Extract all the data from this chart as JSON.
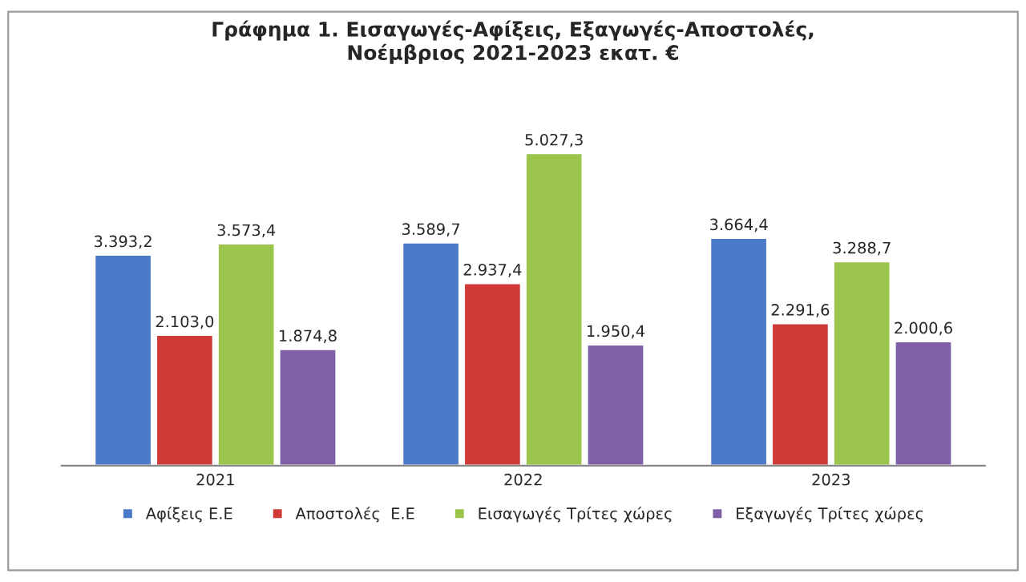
{
  "chart_data": {
    "type": "bar",
    "title": "Γράφημα 1. Εισαγωγές-Αφίξεις, Εξαγωγές-Αποστολές,\nΝοέμβριος 2021-2023 εκατ. €",
    "categories": [
      "2021",
      "2022",
      "2023"
    ],
    "series": [
      {
        "name": "Αφίξεις Ε.Ε",
        "color": "#4a7ac8",
        "values": [
          3393.2,
          3589.7,
          3664.4
        ],
        "value_labels": [
          "3.393,2",
          "3.589,7",
          "3.664,4"
        ]
      },
      {
        "name": "Αποστολές  Ε.Ε",
        "color": "#d03a36",
        "values": [
          2103.0,
          2937.4,
          2291.6
        ],
        "value_labels": [
          "2.103,0",
          "2.937,4",
          "2.291,6"
        ]
      },
      {
        "name": "Εισαγωγές Τρίτες χώρες",
        "color": "#9bc54c",
        "values": [
          3573.4,
          5027.3,
          3288.7
        ],
        "value_labels": [
          "3.573,4",
          "5.027,3",
          "3.288,7"
        ]
      },
      {
        "name": "Εξαγωγές Τρίτες χώρες",
        "color": "#7f5fa8",
        "values": [
          1874.8,
          1950.4,
          2000.6
        ],
        "value_labels": [
          "1.874,8",
          "1.950,4",
          "2.000,6"
        ]
      }
    ],
    "tick_labels": "x",
    "grid": false,
    "legend": "bottom"
  }
}
